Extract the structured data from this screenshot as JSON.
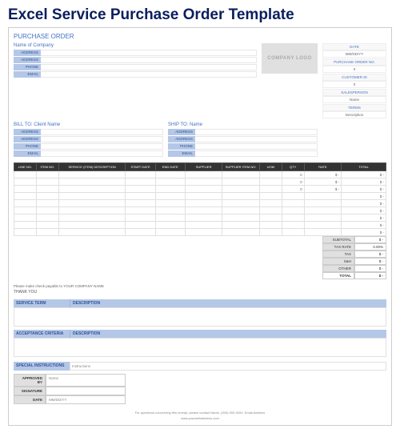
{
  "title": "Excel Service Purchase Order Template",
  "header": "PURCHASE ORDER",
  "company": {
    "title": "Name of Company",
    "fields": [
      "ADDRESS",
      "ADDRESS",
      "PHONE",
      "EMAIL"
    ]
  },
  "logo_text": "COMPANY LOGO",
  "meta": [
    {
      "label": "DATE",
      "value": "MM/DD/YY"
    },
    {
      "label": "PURCHASE ORDER NO.",
      "value": "0"
    },
    {
      "label": "CUSTOMER ID",
      "value": "0"
    },
    {
      "label": "SALESPERSON",
      "value": "Name"
    },
    {
      "label": "TERMS",
      "value": "Description"
    }
  ],
  "bill_to": {
    "title": "BILL TO: Client Name",
    "fields": [
      "ADDRESS",
      "ADDRESS",
      "PHONE",
      "EMAIL"
    ]
  },
  "ship_to": {
    "title": "SHIP TO: Name",
    "fields": [
      "ADDRESS",
      "ADDRESS",
      "PHONE",
      "EMAIL"
    ]
  },
  "items": {
    "columns": [
      "LINE NO.",
      "ITEM NO.",
      "SERVICE (ITEM) DESCRIPTION",
      "START DATE",
      "END DATE",
      "SUPPLIER",
      "SUPPLIER ITEM NO.",
      "UOM",
      "QTY",
      "RATE",
      "TOTAL"
    ],
    "rows": [
      [
        "",
        "",
        "",
        "",
        "",
        "",
        "",
        "",
        "0",
        "$       -",
        "$       -"
      ],
      [
        "",
        "",
        "",
        "",
        "",
        "",
        "",
        "",
        "0",
        "$       -",
        "$       -"
      ],
      [
        "",
        "",
        "",
        "",
        "",
        "",
        "",
        "",
        "0",
        "$       -",
        "$       -"
      ],
      [
        "",
        "",
        "",
        "",
        "",
        "",
        "",
        "",
        "",
        "",
        "$       -"
      ],
      [
        "",
        "",
        "",
        "",
        "",
        "",
        "",
        "",
        "",
        "",
        "$       -"
      ],
      [
        "",
        "",
        "",
        "",
        "",
        "",
        "",
        "",
        "",
        "",
        "$       -"
      ],
      [
        "",
        "",
        "",
        "",
        "",
        "",
        "",
        "",
        "",
        "",
        "$       -"
      ],
      [
        "",
        "",
        "",
        "",
        "",
        "",
        "",
        "",
        "",
        "",
        "$       -"
      ],
      [
        "",
        "",
        "",
        "",
        "",
        "",
        "",
        "",
        "",
        "",
        "$       -"
      ]
    ]
  },
  "totals": [
    {
      "label": "SUBTOTAL",
      "value": "$       -"
    },
    {
      "label": "TAX RATE",
      "value": "0.00%"
    },
    {
      "label": "TAX",
      "value": "$       -"
    },
    {
      "label": "S&H",
      "value": "$       -"
    },
    {
      "label": "OTHER",
      "value": "$       -"
    }
  ],
  "total_final": {
    "label": "TOTAL",
    "value": "$     -"
  },
  "payable_note": "Please make check payable to YOUR COMPANY NAME",
  "thank_you": "THANK YOU",
  "service_term": {
    "label": "SERVICE TERM",
    "desc": "DESCRIPTION"
  },
  "acceptance": {
    "label": "ACCEPTANCE CRITERIA",
    "desc": "DESCRIPTION"
  },
  "instructions": {
    "label": "SPECIAL INSTRUCTIONS",
    "placeholder": "Instructions"
  },
  "approval": [
    {
      "label": "APPROVED BY",
      "value": "Name"
    },
    {
      "label": "SIGNATURE",
      "value": ""
    },
    {
      "label": "DATE",
      "value": "MM/DD/YY"
    }
  ],
  "footer": "For questions concerning this receipt, please contact Name, (000) 000-0000, Email Address",
  "footer_link": "www.yourwebaddress.com",
  "colors": {
    "title": "#0a1e5e",
    "accent": "#4472c4",
    "header_bg": "#b4c7e7",
    "table_header_bg": "#333333",
    "gray_bg": "#e0e0e0"
  }
}
